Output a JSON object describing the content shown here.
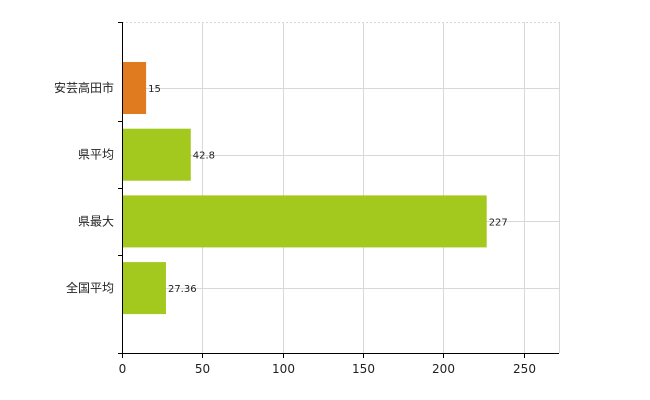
{
  "chart_data": {
    "type": "bar",
    "orientation": "horizontal",
    "categories": [
      "安芸高田市",
      "県平均",
      "県最大",
      "全国平均"
    ],
    "values": [
      15,
      42.8,
      227,
      27.36
    ],
    "value_labels": [
      "15",
      "42.8",
      "227",
      "27.36"
    ],
    "bar_colors": [
      "#e07b20",
      "#a3c81e",
      "#a3c81e",
      "#a3c81e"
    ],
    "xlim": [
      0,
      272
    ],
    "xticks": [
      0,
      50,
      100,
      150,
      200,
      250
    ],
    "grid": true,
    "title": "",
    "xlabel": "",
    "ylabel": ""
  }
}
